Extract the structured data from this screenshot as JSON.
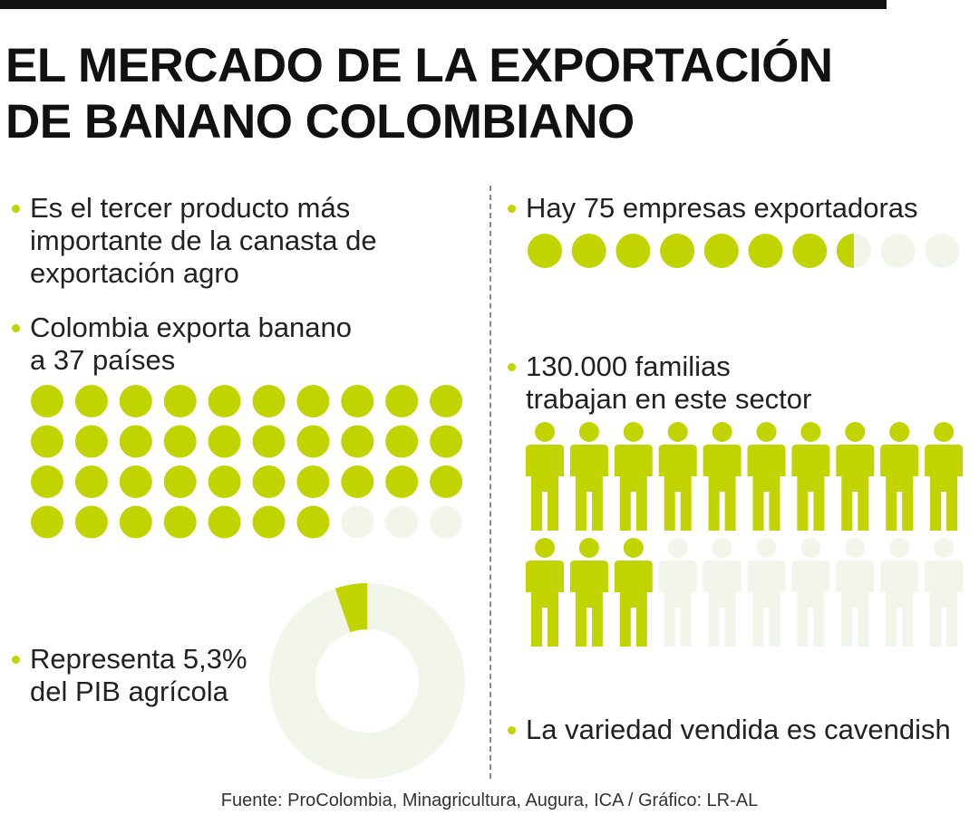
{
  "title": {
    "line1": "EL MERCADO DE LA EXPORTACIÓN",
    "line2": "DE BANANO COLOMBIANO"
  },
  "facts": {
    "product_rank": {
      "line1": "Es el tercer producto más",
      "line2": "importante de la canasta de",
      "line3": "exportación agro"
    },
    "countries": {
      "line1": "Colombia exporta banano",
      "line2": "a 37 países"
    },
    "pib": {
      "line1": "Representa 5,3%",
      "line2": "del PIB agrícola"
    },
    "companies": {
      "line1": "Hay 75 empresas exportadoras"
    },
    "families": {
      "line1": "130.000 familias",
      "line2": "trabajan en este sector"
    },
    "variety": {
      "line1": "La variedad vendida es cavendish"
    }
  },
  "source": "Fuente: ProColombia, Minagricultura, Augura, ICA / Gráfico: LR-AL",
  "colors": {
    "accent": "#c2d400",
    "empty": "#f2f5ea",
    "text": "#222222",
    "divider": "#8a8a8a"
  },
  "chart_data": [
    {
      "type": "pictogram",
      "name": "countries",
      "filled": 37,
      "total": 40
    },
    {
      "type": "pie",
      "name": "pib_share",
      "values": [
        5.3,
        94.7
      ],
      "unit": "%"
    },
    {
      "type": "pictogram",
      "name": "companies",
      "filled": 7.5,
      "total": 10
    },
    {
      "type": "pictogram",
      "name": "families",
      "filled": 13,
      "total": 20
    }
  ]
}
